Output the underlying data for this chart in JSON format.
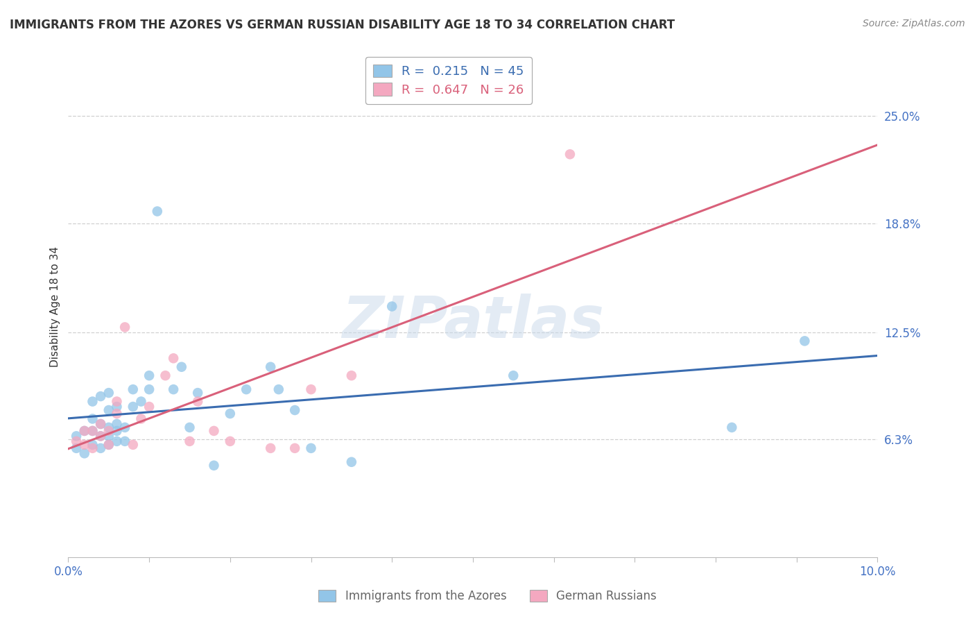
{
  "title": "IMMIGRANTS FROM THE AZORES VS GERMAN RUSSIAN DISABILITY AGE 18 TO 34 CORRELATION CHART",
  "source_text": "Source: ZipAtlas.com",
  "ylabel": "Disability Age 18 to 34",
  "xlim": [
    0.0,
    0.1
  ],
  "ylim": [
    -0.005,
    0.285
  ],
  "yticks": [
    0.063,
    0.125,
    0.188,
    0.25
  ],
  "ytick_labels": [
    "6.3%",
    "12.5%",
    "18.8%",
    "25.0%"
  ],
  "xticks": [
    0.0,
    0.01,
    0.02,
    0.03,
    0.04,
    0.05,
    0.06,
    0.07,
    0.08,
    0.09,
    0.1
  ],
  "xtick_labels": [
    "0.0%",
    "",
    "",
    "",
    "",
    "",
    "",
    "",
    "",
    "",
    "10.0%"
  ],
  "blue_color": "#92c5e8",
  "pink_color": "#f4a8c0",
  "blue_line_color": "#3a6cb0",
  "pink_line_color": "#d9607a",
  "legend_blue_label": "R =  0.215   N = 45",
  "legend_pink_label": "R =  0.647   N = 26",
  "legend_blue_series": "Immigrants from the Azores",
  "legend_pink_series": "German Russians",
  "watermark": "ZIPatlas",
  "blue_scatter_x": [
    0.001,
    0.001,
    0.002,
    0.002,
    0.003,
    0.003,
    0.003,
    0.003,
    0.004,
    0.004,
    0.004,
    0.004,
    0.005,
    0.005,
    0.005,
    0.005,
    0.005,
    0.006,
    0.006,
    0.006,
    0.006,
    0.007,
    0.007,
    0.008,
    0.008,
    0.009,
    0.01,
    0.01,
    0.011,
    0.013,
    0.014,
    0.015,
    0.016,
    0.018,
    0.02,
    0.022,
    0.025,
    0.026,
    0.028,
    0.03,
    0.035,
    0.04,
    0.055,
    0.082,
    0.091
  ],
  "blue_scatter_y": [
    0.065,
    0.058,
    0.055,
    0.068,
    0.06,
    0.068,
    0.075,
    0.085,
    0.058,
    0.065,
    0.072,
    0.088,
    0.06,
    0.065,
    0.07,
    0.08,
    0.09,
    0.062,
    0.068,
    0.072,
    0.082,
    0.062,
    0.07,
    0.082,
    0.092,
    0.085,
    0.092,
    0.1,
    0.195,
    0.092,
    0.105,
    0.07,
    0.09,
    0.048,
    0.078,
    0.092,
    0.105,
    0.092,
    0.08,
    0.058,
    0.05,
    0.14,
    0.1,
    0.07,
    0.12
  ],
  "pink_scatter_x": [
    0.001,
    0.002,
    0.002,
    0.003,
    0.003,
    0.004,
    0.004,
    0.005,
    0.005,
    0.006,
    0.006,
    0.007,
    0.008,
    0.009,
    0.01,
    0.012,
    0.013,
    0.015,
    0.016,
    0.018,
    0.02,
    0.025,
    0.028,
    0.03,
    0.035,
    0.062
  ],
  "pink_scatter_y": [
    0.062,
    0.06,
    0.068,
    0.058,
    0.068,
    0.065,
    0.072,
    0.06,
    0.068,
    0.078,
    0.085,
    0.128,
    0.06,
    0.075,
    0.082,
    0.1,
    0.11,
    0.062,
    0.085,
    0.068,
    0.062,
    0.058,
    0.058,
    0.092,
    0.1,
    0.228
  ],
  "grid_color": "#d0d0d0",
  "background_color": "#ffffff",
  "title_fontsize": 12,
  "axis_label_fontsize": 11,
  "tick_fontsize": 12,
  "tick_color": "#4472c4",
  "source_fontsize": 10
}
